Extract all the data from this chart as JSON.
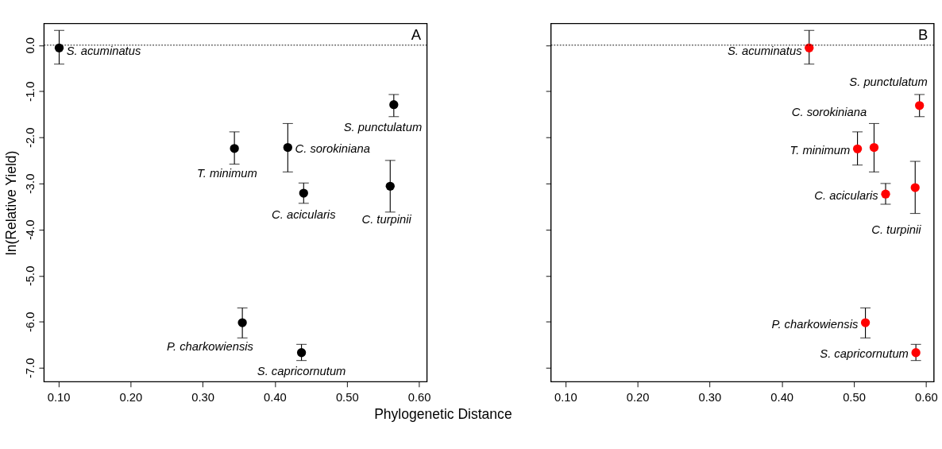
{
  "chart_data": [
    {
      "type": "scatter",
      "xlabel": "Phylogenetic Distance",
      "ylabel": "ln(Relative Yield)",
      "marker": "circle",
      "xlim": [
        0.08,
        0.611
      ],
      "ylim": [
        -7.3,
        0.47
      ],
      "xticks": [
        {
          "value": 0.1,
          "label": "0.10"
        },
        {
          "value": 0.2,
          "label": "0.20"
        },
        {
          "value": 0.3,
          "label": "0.30"
        },
        {
          "value": 0.4,
          "label": "0.40"
        },
        {
          "value": 0.5,
          "label": "0.50"
        },
        {
          "value": 0.6,
          "label": "0.60"
        }
      ],
      "yticks": [
        {
          "value": 0,
          "label": "0.0"
        },
        {
          "value": -1,
          "label": "-1.0"
        },
        {
          "value": -2,
          "label": "-2.0"
        },
        {
          "value": -3,
          "label": "-3.0"
        },
        {
          "value": -4,
          "label": "-4.0"
        },
        {
          "value": -5,
          "label": "-5.0"
        },
        {
          "value": -6,
          "label": "-6.0"
        },
        {
          "value": -7,
          "label": "-7.0"
        }
      ],
      "series": [
        {
          "color": "#000000",
          "x": [
            0.101,
            0.565,
            0.344,
            0.418,
            0.44,
            0.56,
            0.355,
            0.437
          ],
          "values": [
            -0.06,
            -1.29,
            -2.24,
            -2.22,
            -3.21,
            -3.06,
            -6.02,
            -6.67
          ],
          "errors": [
            [
              -0.41,
              0.32
            ],
            [
              -1.55,
              -1.07
            ],
            [
              -2.58,
              -1.88
            ],
            [
              -2.75,
              -1.7
            ],
            [
              -3.43,
              -2.99
            ],
            [
              -3.62,
              -2.5
            ],
            [
              -6.35,
              -5.7
            ],
            [
              -6.84,
              -6.49
            ]
          ]
        }
      ],
      "ref_lines": [
        {
          "axis": "y",
          "value": 0,
          "line_style": "dotted",
          "color": "#000000"
        }
      ],
      "annotations": [
        {
          "text": "S. acuminatus",
          "x": 0.101,
          "y": -0.06
        },
        {
          "text": "S. punctulatum",
          "x": 0.565,
          "y": -1.29
        },
        {
          "text": "T. minimum",
          "x": 0.344,
          "y": -2.24
        },
        {
          "text": "C. sorokiniana",
          "x": 0.418,
          "y": -2.22
        },
        {
          "text": "C. acicularis",
          "x": 0.44,
          "y": -3.21
        },
        {
          "text": "C. turpinii",
          "x": 0.56,
          "y": -3.06
        },
        {
          "text": "P. charkowiensis",
          "x": 0.355,
          "y": -6.02
        },
        {
          "text": "S. capricornutum",
          "x": 0.437,
          "y": -6.67
        },
        "A"
      ]
    },
    {
      "type": "scatter",
      "marker": "circle",
      "tick_labels": "x",
      "xlim": [
        0.08,
        0.611
      ],
      "ylim": [
        -7.3,
        0.47
      ],
      "xticks": [
        {
          "value": 0.1,
          "label": "0.10"
        },
        {
          "value": 0.2,
          "label": "0.20"
        },
        {
          "value": 0.3,
          "label": "0.30"
        },
        {
          "value": 0.4,
          "label": "0.40"
        },
        {
          "value": 0.5,
          "label": "0.50"
        },
        {
          "value": 0.6,
          "label": "0.60"
        }
      ],
      "yticks": [
        {
          "value": 0,
          "label": null
        },
        {
          "value": -1,
          "label": null
        },
        {
          "value": -2,
          "label": null
        },
        {
          "value": -3,
          "label": null
        },
        {
          "value": -4,
          "label": null
        },
        {
          "value": -5,
          "label": null
        },
        {
          "value": -6,
          "label": null
        },
        {
          "value": -7,
          "label": null
        }
      ],
      "series": [
        {
          "color": "#ff0000",
          "x": [
            0.438,
            0.591,
            0.505,
            0.528,
            0.544,
            0.585,
            0.516,
            0.586
          ],
          "values": [
            -0.06,
            -1.31,
            -2.25,
            -2.22,
            -3.23,
            -3.09,
            -6.02,
            -6.67
          ],
          "errors": [
            [
              -0.41,
              0.32
            ],
            [
              -1.55,
              -1.07
            ],
            [
              -2.6,
              -1.88
            ],
            [
              -2.75,
              -1.7
            ],
            [
              -3.45,
              -3.0
            ],
            [
              -3.65,
              -2.52
            ],
            [
              -6.35,
              -5.7
            ],
            [
              -6.84,
              -6.49
            ]
          ]
        }
      ],
      "ref_lines": [
        {
          "axis": "y",
          "value": 0,
          "line_style": "dotted",
          "color": "#000000"
        }
      ],
      "annotations": [
        {
          "text": "S. acuminatus",
          "x": 0.438,
          "y": -0.06
        },
        {
          "text": "S. punctulatum",
          "x": 0.591,
          "y": -1.31
        },
        {
          "text": "T. minimum",
          "x": 0.505,
          "y": -2.25
        },
        {
          "text": "C. sorokiniana",
          "x": 0.528,
          "y": -2.22
        },
        {
          "text": "C. acicularis",
          "x": 0.544,
          "y": -3.23
        },
        {
          "text": "C. turpinii",
          "x": 0.585,
          "y": -3.09
        },
        {
          "text": "P. charkowiensis",
          "x": 0.516,
          "y": -6.02
        },
        {
          "text": "S. capricornutum",
          "x": 0.586,
          "y": -6.67
        },
        "B"
      ]
    }
  ]
}
